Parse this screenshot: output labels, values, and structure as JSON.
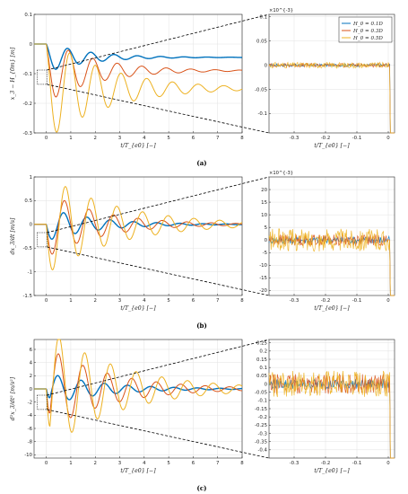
{
  "colors": {
    "blue": "#0072BD",
    "orange": "#D95319",
    "yellow": "#EDB120",
    "grid": "#e2e2e2",
    "axis": "#262626"
  },
  "legend": [
    "H_0 = 0.1D",
    "H_0 = 0.3D",
    "H_0 = 0.5D"
  ],
  "chart_data": [
    {
      "id": "a-left",
      "type": "line",
      "caption": "(a)",
      "xlabel": "t/T_{e0} [−]",
      "ylabel": "x_3 − H_{0m} [m]",
      "xlim": [
        -0.5,
        8
      ],
      "ylim": [
        -0.3,
        0.1
      ],
      "xticks": [
        "0",
        "1",
        "2",
        "3",
        "4",
        "5",
        "6",
        "7",
        "8"
      ],
      "yticks": [
        "-0.3",
        "-0.2",
        "-0.1",
        "0",
        "0.1"
      ],
      "grid": true,
      "series": [
        {
          "name": "H_0 = 0.1D",
          "shape": {
            "mode": "drop",
            "t0": 0,
            "final": -0.045,
            "amp": 0.04,
            "period": 0.95,
            "decay": 0.6
          }
        },
        {
          "name": "H_0 = 0.3D",
          "shape": {
            "mode": "drop",
            "t0": 0,
            "final": -0.09,
            "amp": 0.1,
            "period": 1.0,
            "decay": 0.5
          }
        },
        {
          "name": "H_0 = 0.5D",
          "shape": {
            "mode": "drop",
            "t0": 0,
            "final": -0.15,
            "amp": 0.15,
            "period": 1.05,
            "decay": 0.4
          }
        }
      ]
    },
    {
      "id": "a-right",
      "type": "line",
      "inset_of": "a-left",
      "xlabel": "t/T_{e0} [−]",
      "exponent": "×10^{-3}",
      "xlim": [
        -0.38,
        0.02
      ],
      "ylim": [
        -0.14,
        0.105
      ],
      "xticks": [
        "-0.3",
        "-0.2",
        "-0.1",
        "0"
      ],
      "yticks": [
        "-0.1",
        "-0.05",
        "0",
        "0.05",
        "0.1"
      ],
      "grid": true,
      "series": [
        {
          "name": "H_0 = 0.1D",
          "noise": 0.003,
          "end_value": -0.15
        },
        {
          "name": "H_0 = 0.3D",
          "noise": 0.004,
          "end_value": -0.15
        },
        {
          "name": "H_0 = 0.5D",
          "noise": 0.006,
          "end_value": -0.15
        }
      ]
    },
    {
      "id": "b-left",
      "type": "line",
      "caption": "(b)",
      "xlabel": "t/T_{e0} [−]",
      "ylabel": "dx_3/dt [m/s]",
      "xlim": [
        -0.5,
        8
      ],
      "ylim": [
        -1.5,
        1
      ],
      "xticks": [
        "0",
        "1",
        "2",
        "3",
        "4",
        "5",
        "6",
        "7",
        "8"
      ],
      "yticks": [
        "-1.5",
        "-1",
        "-0.5",
        "0",
        "0.5",
        "1"
      ],
      "grid": true,
      "series": [
        {
          "name": "H_0 = 0.1D",
          "shape": {
            "mode": "osc",
            "t0": 0,
            "amp": -0.35,
            "period": 0.95,
            "decay": 0.5
          }
        },
        {
          "name": "H_0 = 0.3D",
          "shape": {
            "mode": "osc",
            "t0": 0,
            "amp": -0.7,
            "period": 1.0,
            "decay": 0.45
          }
        },
        {
          "name": "H_0 = 0.5D",
          "shape": {
            "mode": "osc",
            "t0": 0,
            "amp": -1.05,
            "period": 1.05,
            "decay": 0.35
          }
        }
      ]
    },
    {
      "id": "b-right",
      "type": "line",
      "inset_of": "b-left",
      "xlabel": "t/T_{e0} [−]",
      "exponent": "×10^{-3}",
      "xlim": [
        -0.38,
        0.02
      ],
      "ylim": [
        -22,
        25
      ],
      "xticks": [
        "-0.3",
        "-0.2",
        "-0.1",
        "0"
      ],
      "yticks": [
        "-20",
        "-15",
        "-10",
        "-5",
        "0",
        "5",
        "10",
        "15",
        "20"
      ],
      "grid": true,
      "series": [
        {
          "name": "H_0 = 0.1D",
          "noise": 1.5,
          "end_value": -22
        },
        {
          "name": "H_0 = 0.3D",
          "noise": 2.2,
          "end_value": -22
        },
        {
          "name": "H_0 = 0.5D",
          "noise": 4.5,
          "end_value": -22
        }
      ]
    },
    {
      "id": "c-left",
      "type": "line",
      "caption": "(c)",
      "xlabel": "t/T_{e0} [−]",
      "ylabel": "d²x_3/dt² [m/s²]",
      "xlim": [
        -0.5,
        8
      ],
      "ylim": [
        -10.5,
        7.5
      ],
      "xticks": [
        "0",
        "1",
        "2",
        "3",
        "4",
        "5",
        "6",
        "7",
        "8"
      ],
      "yticks": [
        "-10",
        "-8",
        "-6",
        "-4",
        "-2",
        "0",
        "2",
        "4",
        "6"
      ],
      "grid": true,
      "series": [
        {
          "name": "H_0 = 0.1D",
          "shape": {
            "mode": "acc",
            "t0": 0,
            "amp": -2.5,
            "period": 0.95,
            "decay": 0.45
          }
        },
        {
          "name": "H_0 = 0.3D",
          "shape": {
            "mode": "acc",
            "t0": 0,
            "amp": -6.5,
            "period": 1.0,
            "decay": 0.4
          }
        },
        {
          "name": "H_0 = 0.5D",
          "shape": {
            "mode": "acc",
            "t0": 0,
            "amp": -9.5,
            "period": 1.05,
            "decay": 0.35
          }
        }
      ]
    },
    {
      "id": "c-right",
      "type": "line",
      "inset_of": "c-left",
      "xlabel": "t/T_{e0} [−]",
      "xlim": [
        -0.38,
        0.02
      ],
      "ylim": [
        -0.45,
        0.27
      ],
      "xticks": [
        "-0.3",
        "-0.2",
        "-0.1",
        "0"
      ],
      "yticks": [
        "-0.4",
        "-0.35",
        "-0.3",
        "-0.25",
        "-0.2",
        "-0.15",
        "-0.1",
        "-0.05",
        "0",
        "0.05",
        "0.1",
        "0.15",
        "0.2",
        "0.25"
      ],
      "grid": true,
      "series": [
        {
          "name": "H_0 = 0.1D",
          "noise": 0.03,
          "end_value": -0.45
        },
        {
          "name": "H_0 = 0.3D",
          "noise": 0.06,
          "end_value": -0.45
        },
        {
          "name": "H_0 = 0.5D",
          "noise": 0.08,
          "end_value": -0.45
        }
      ]
    }
  ]
}
